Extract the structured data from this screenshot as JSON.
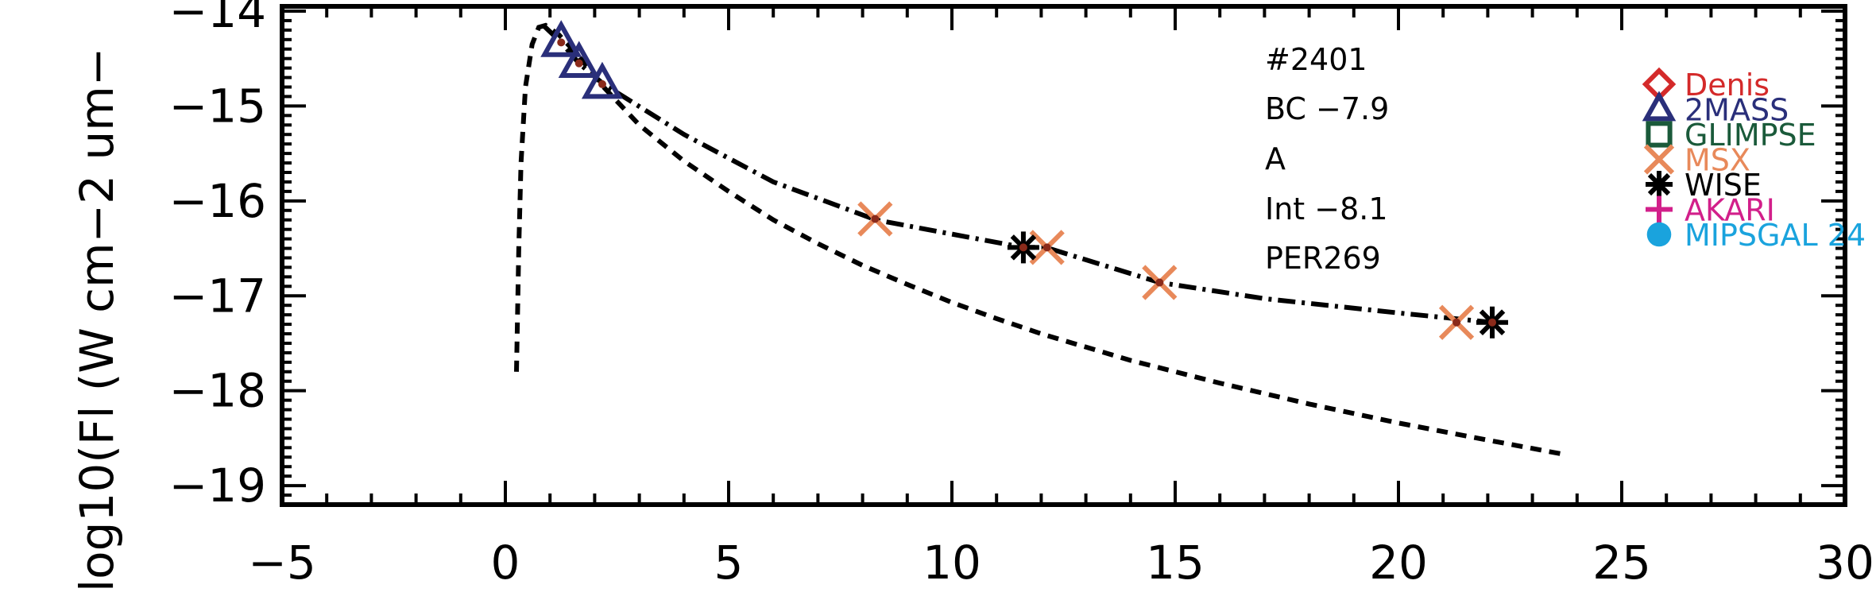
{
  "chart_data": {
    "type": "scatter",
    "title": "",
    "xlabel": "",
    "ylabel": "log10(Fl (W cm−2 um−",
    "xlim": [
      -5,
      30
    ],
    "ylim": [
      -19.2,
      -13.95
    ],
    "x_ticks": [
      "−5",
      "0",
      "5",
      "10",
      "15",
      "20",
      "25",
      "30"
    ],
    "x_tick_values": [
      -5,
      0,
      5,
      10,
      15,
      20,
      25,
      30
    ],
    "y_ticks": [
      "−14",
      "−15",
      "−16",
      "−17",
      "−18",
      "−19"
    ],
    "y_tick_values": [
      -14,
      -15,
      -16,
      -17,
      -18,
      -19
    ],
    "annotations": [
      "#2401",
      "BC −7.9",
      "A",
      "Int −8.1",
      "PER269"
    ],
    "legend": [
      {
        "name": "Denis",
        "color": "#d42a2a",
        "marker": "diamond"
      },
      {
        "name": "2MASS",
        "color": "#2a2f7a",
        "marker": "triangle"
      },
      {
        "name": "GLIMPSE",
        "color": "#1a5a3a",
        "marker": "square"
      },
      {
        "name": "MSX",
        "color": "#e8895a",
        "marker": "x"
      },
      {
        "name": "WISE",
        "color": "#000000",
        "marker": "asterisk"
      },
      {
        "name": "AKARI",
        "color": "#d21f8a",
        "marker": "plus"
      },
      {
        "name": "MIPSGAL 24",
        "color": "#1aa3dd",
        "marker": "circle"
      }
    ],
    "legend_position": "top-right",
    "series": [
      {
        "name": "2MASS",
        "marker": "triangle",
        "color": "#2a2f7a",
        "points": [
          [
            1.25,
            -14.33
          ],
          [
            1.65,
            -14.55
          ],
          [
            2.17,
            -14.77
          ]
        ]
      },
      {
        "name": "MSX",
        "marker": "x",
        "color": "#e8895a",
        "points": [
          [
            8.28,
            -16.19
          ],
          [
            12.13,
            -16.49
          ],
          [
            14.65,
            -16.86
          ],
          [
            21.3,
            -17.28
          ]
        ]
      },
      {
        "name": "WISE",
        "marker": "asterisk",
        "color": "#000000",
        "points": [
          [
            11.6,
            -16.49
          ],
          [
            22.1,
            -17.28
          ]
        ]
      }
    ],
    "curves": [
      {
        "style": "dashed",
        "points": [
          [
            0.25,
            -17.8
          ],
          [
            0.3,
            -16.5
          ],
          [
            0.35,
            -15.6
          ],
          [
            0.45,
            -14.8
          ],
          [
            0.6,
            -14.35
          ],
          [
            0.75,
            -14.17
          ],
          [
            0.9,
            -14.15
          ],
          [
            1.2,
            -14.25
          ],
          [
            1.6,
            -14.45
          ],
          [
            2.2,
            -14.8
          ],
          [
            3,
            -15.2
          ],
          [
            4,
            -15.58
          ],
          [
            5,
            -15.9
          ],
          [
            6,
            -16.2
          ],
          [
            7,
            -16.45
          ],
          [
            8,
            -16.68
          ],
          [
            9,
            -16.88
          ],
          [
            10,
            -17.07
          ],
          [
            11,
            -17.24
          ],
          [
            12,
            -17.4
          ],
          [
            14,
            -17.68
          ],
          [
            16,
            -17.92
          ],
          [
            18,
            -18.14
          ],
          [
            20,
            -18.34
          ],
          [
            22,
            -18.52
          ],
          [
            23.7,
            -18.67
          ]
        ]
      },
      {
        "style": "dashdot",
        "points": [
          [
            0.85,
            -14.15
          ],
          [
            1.25,
            -14.33
          ],
          [
            1.65,
            -14.55
          ],
          [
            2.2,
            -14.77
          ],
          [
            4,
            -15.3
          ],
          [
            6,
            -15.8
          ],
          [
            8.3,
            -16.2
          ],
          [
            10,
            -16.35
          ],
          [
            11.6,
            -16.49
          ],
          [
            12.1,
            -16.49
          ],
          [
            14.65,
            -16.86
          ],
          [
            17,
            -17.03
          ],
          [
            20,
            -17.18
          ],
          [
            22.1,
            -17.28
          ]
        ]
      }
    ]
  }
}
